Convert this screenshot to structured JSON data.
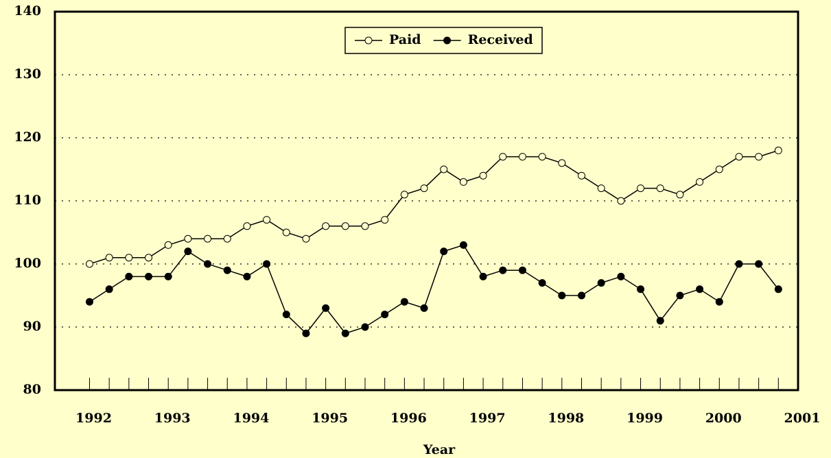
{
  "chart_data": {
    "type": "line",
    "x_label": "Year",
    "x": [
      1992,
      1992.25,
      1992.5,
      1992.75,
      1993,
      1993.25,
      1993.5,
      1993.75,
      1994,
      1994.25,
      1994.5,
      1994.75,
      1995,
      1995.25,
      1995.5,
      1995.75,
      1996,
      1996.25,
      1996.5,
      1996.75,
      1997,
      1997.25,
      1997.5,
      1997.75,
      1998,
      1998.25,
      1998.5,
      1998.75,
      1999,
      1999.25,
      1999.5,
      1999.75,
      2000,
      2000.25,
      2000.5,
      2000.75
    ],
    "series": [
      {
        "name": "Paid",
        "color": "#000000",
        "marker": "open",
        "values": [
          100,
          101,
          101,
          101,
          103,
          104,
          104,
          104,
          106,
          107,
          105,
          104,
          106,
          106,
          106,
          107,
          111,
          112,
          115,
          113,
          114,
          117,
          117,
          117,
          116,
          114,
          112,
          110,
          112,
          112,
          111,
          113,
          115,
          117,
          117,
          118
        ]
      },
      {
        "name": "Received",
        "color": "#000000",
        "marker": "filled",
        "values": [
          94,
          96,
          98,
          98,
          98,
          102,
          100,
          99,
          98,
          100,
          92,
          89,
          93,
          89,
          90,
          92,
          94,
          93,
          102,
          103,
          98,
          99,
          99,
          97,
          95,
          95,
          97,
          98,
          96,
          91,
          95,
          96,
          94,
          100,
          100,
          96
        ]
      }
    ],
    "xlim": [
      1991.56,
      2001
    ],
    "xticks": [
      1992,
      1993,
      1994,
      1995,
      1996,
      1997,
      1998,
      1999,
      2000,
      2001
    ],
    "ylim": [
      80,
      140
    ],
    "yticks": [
      80,
      90,
      100,
      110,
      120,
      130,
      140
    ],
    "grid": true,
    "legend": "top"
  }
}
